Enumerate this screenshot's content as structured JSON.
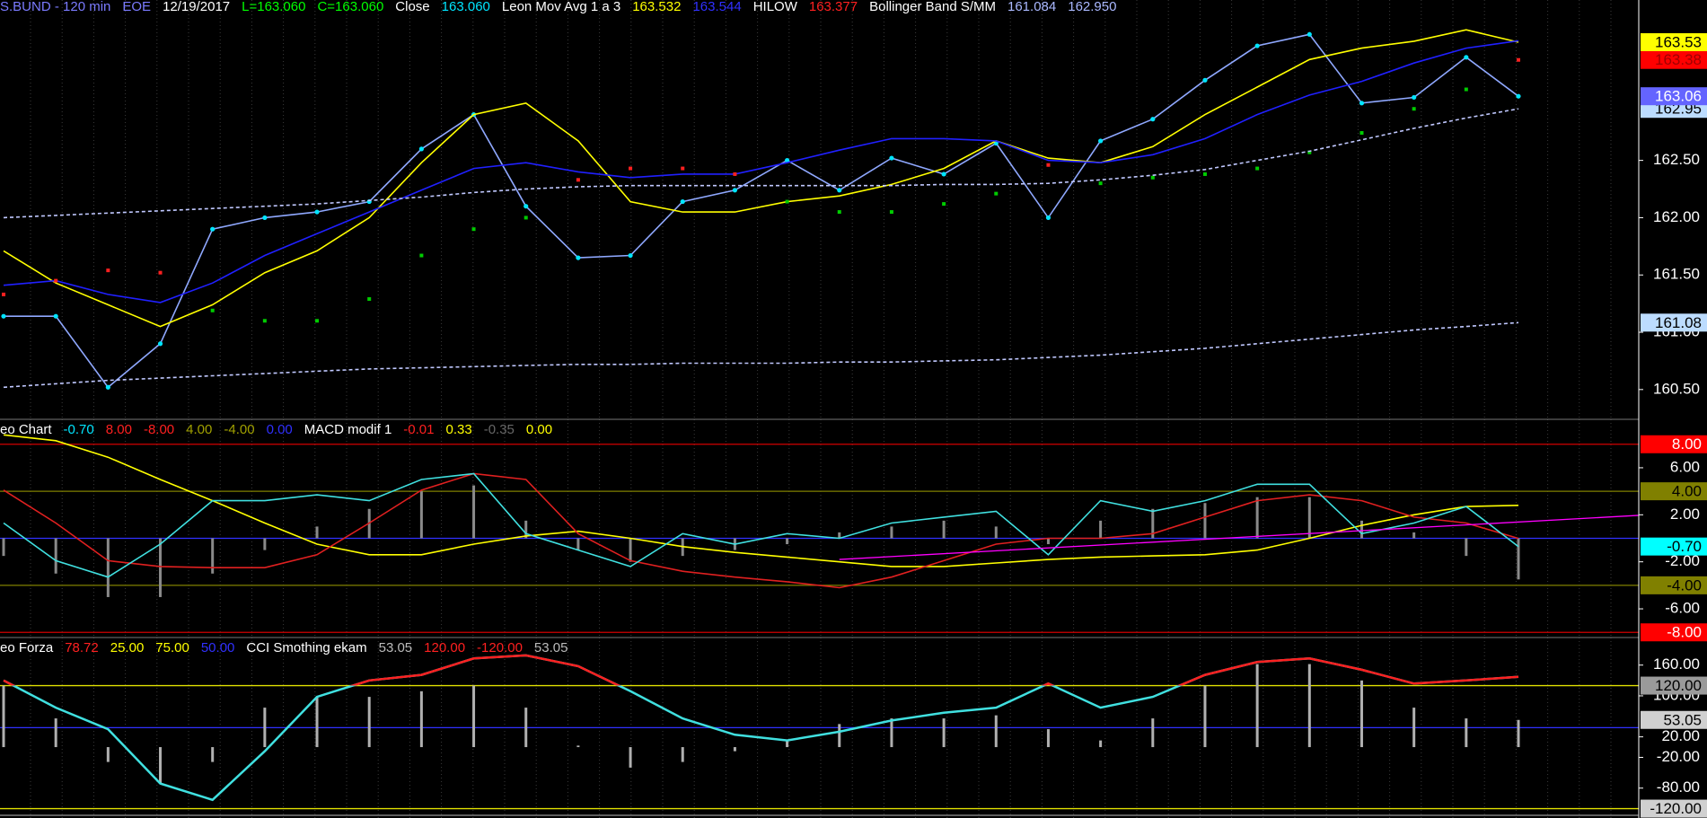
{
  "chart_data": [
    {
      "type": "line",
      "header": [
        {
          "text": "S.BUND - 120 min",
          "color": "#7b7bff"
        },
        {
          "text": "EOE",
          "color": "#7b7bff"
        },
        {
          "text": "12/19/2017",
          "color": "#ffffff"
        },
        {
          "text": "L=163.060",
          "color": "#00ff00"
        },
        {
          "text": "C=163.060",
          "color": "#00ff00"
        },
        {
          "text": "Close",
          "color": "#ffffff"
        },
        {
          "text": "163.060",
          "color": "#00e5ff"
        },
        {
          "text": "Leon Mov Avg 1 a 3",
          "color": "#ffffff"
        },
        {
          "text": "163.532",
          "color": "#ffff00"
        },
        {
          "text": "163.544",
          "color": "#3030ff"
        },
        {
          "text": "HILOW",
          "color": "#ffffff"
        },
        {
          "text": "163.377",
          "color": "#ff2020"
        },
        {
          "text": "Bollinger Band S/MM",
          "color": "#ffffff"
        },
        {
          "text": "161.084",
          "color": "#aab8ff"
        },
        {
          "text": "162.950",
          "color": "#aab8ff"
        }
      ],
      "ylim": [
        160.24,
        163.9
      ],
      "yticks": [
        {
          "value": 162.5,
          "label": "162.50"
        },
        {
          "value": 162,
          "label": "162.00"
        },
        {
          "value": 161.5,
          "label": "161.50"
        },
        {
          "value": 161,
          "label": "161.00"
        },
        {
          "value": 160.5,
          "label": "160.50"
        }
      ],
      "badges": [
        {
          "value": 162.95,
          "label": "162.95",
          "bg": "#bcdcff",
          "fg": "#000000"
        },
        {
          "value": 163.377,
          "label": "163.38",
          "bg": "#ff0000",
          "fg": "#a00000"
        },
        {
          "value": 163.532,
          "label": "163.53",
          "bg": "#ffff00",
          "fg": "#000000"
        },
        {
          "value": 163.06,
          "label": "163.06",
          "bg": "#6464ff",
          "fg": "#ffffff"
        },
        {
          "value": 161.084,
          "label": "161.08",
          "bg": "#bcdcff",
          "fg": "#000000"
        }
      ],
      "series": [
        {
          "style": "markers",
          "color": "#8fa8ff",
          "marker_color": "#00e5ff",
          "values": [
            161.14,
            161.14,
            160.52,
            160.9,
            161.9,
            162.0,
            162.05,
            162.14,
            162.6,
            162.9,
            162.1,
            161.65,
            161.67,
            162.14,
            162.24,
            162.5,
            162.24,
            162.52,
            162.38,
            162.65,
            162.0,
            162.67,
            162.86,
            163.2,
            163.5,
            163.6,
            163.0,
            163.05,
            163.4,
            163.06
          ]
        },
        {
          "style": "line",
          "color": "#ffff00",
          "values": [
            161.71,
            161.43,
            161.24,
            161.05,
            161.24,
            161.52,
            161.71,
            162.0,
            162.48,
            162.9,
            163.0,
            162.67,
            162.14,
            162.05,
            162.05,
            162.14,
            162.19,
            162.29,
            162.43,
            162.67,
            162.52,
            162.48,
            162.62,
            162.9,
            163.14,
            163.38,
            163.48,
            163.54,
            163.64,
            163.532
          ]
        },
        {
          "style": "line",
          "color": "#2020ff",
          "values": [
            161.41,
            161.45,
            161.33,
            161.26,
            161.43,
            161.67,
            161.86,
            162.05,
            162.24,
            162.43,
            162.48,
            162.4,
            162.35,
            162.38,
            162.38,
            162.48,
            162.59,
            162.69,
            162.69,
            162.67,
            162.5,
            162.48,
            162.55,
            162.69,
            162.9,
            163.07,
            163.19,
            163.35,
            163.48,
            163.544
          ]
        },
        {
          "style": "dots",
          "color": "#00cc00",
          "color_above": "#ff2020",
          "values": [
            161.33,
            161.45,
            161.54,
            161.52,
            161.19,
            161.1,
            161.1,
            161.29,
            161.67,
            161.9,
            162.0,
            162.33,
            162.43,
            162.43,
            162.38,
            162.14,
            162.05,
            162.05,
            162.12,
            162.21,
            162.46,
            162.3,
            162.35,
            162.38,
            162.43,
            162.57,
            162.74,
            162.95,
            163.12,
            163.377
          ]
        },
        {
          "style": "dashed",
          "color": "#c0c8ff",
          "values": [
            162.0,
            162.02,
            162.04,
            162.06,
            162.08,
            162.1,
            162.12,
            162.15,
            162.18,
            162.22,
            162.25,
            162.27,
            162.28,
            162.28,
            162.28,
            162.28,
            162.28,
            162.28,
            162.29,
            162.29,
            162.3,
            162.33,
            162.37,
            162.42,
            162.5,
            162.58,
            162.68,
            162.78,
            162.87,
            162.95
          ]
        },
        {
          "style": "dashed",
          "color": "#c0c8ff",
          "values": [
            160.52,
            160.55,
            160.58,
            160.6,
            160.62,
            160.64,
            160.66,
            160.68,
            160.69,
            160.7,
            160.71,
            160.72,
            160.72,
            160.73,
            160.73,
            160.73,
            160.74,
            160.74,
            160.75,
            160.76,
            160.78,
            160.8,
            160.83,
            160.86,
            160.9,
            160.94,
            160.98,
            161.02,
            161.05,
            161.084
          ]
        }
      ]
    },
    {
      "type": "line",
      "header": [
        {
          "text": "eo Chart",
          "color": "#ffffff"
        },
        {
          "text": "-0.70",
          "color": "#00e5ff"
        },
        {
          "text": "8.00",
          "color": "#ff2020"
        },
        {
          "text": "-8.00",
          "color": "#ff2020"
        },
        {
          "text": "4.00",
          "color": "#a0a000"
        },
        {
          "text": "-4.00",
          "color": "#a0a000"
        },
        {
          "text": "0.00",
          "color": "#3030ff"
        },
        {
          "text": "MACD modif 1",
          "color": "#ffffff"
        },
        {
          "text": "-0.01",
          "color": "#ff2020"
        },
        {
          "text": "0.33",
          "color": "#ffff00"
        },
        {
          "text": "-0.35",
          "color": "#666666"
        },
        {
          "text": "0.00",
          "color": "#ffff00"
        }
      ],
      "ylim": [
        -8.44,
        10.12
      ],
      "yticks": [
        {
          "value": 6,
          "label": "6.00"
        },
        {
          "value": 2,
          "label": "2.00"
        },
        {
          "value": -2,
          "label": "-2.00"
        },
        {
          "value": -6,
          "label": "-6.00"
        }
      ],
      "levels": [
        {
          "value": 8,
          "color": "#d00000"
        },
        {
          "value": 4,
          "color": "#808000"
        },
        {
          "value": 0,
          "color": "#3030ff"
        },
        {
          "value": -4,
          "color": "#808000"
        },
        {
          "value": -8,
          "color": "#d00000"
        }
      ],
      "badges": [
        {
          "value": 8,
          "label": "8.00",
          "bg": "#ff0000",
          "fg": "#ffffff"
        },
        {
          "value": 4,
          "label": "4.00",
          "bg": "#808000",
          "fg": "#000000"
        },
        {
          "value": -0.7,
          "label": "-0.70",
          "bg": "#00ffff",
          "fg": "#000000"
        },
        {
          "value": -4,
          "label": "-4.00",
          "bg": "#808000",
          "fg": "#000000"
        },
        {
          "value": -8,
          "label": "-8.00",
          "bg": "#ff0000",
          "fg": "#ffffff"
        }
      ],
      "trendline": {
        "color": "#ff00ff",
        "from": [
          16,
          -1.8
        ],
        "to": [
          31.5,
          2.0
        ]
      },
      "series": [
        {
          "style": "bars",
          "color": "#8a8a8a",
          "values": [
            -1.5,
            -3,
            -5,
            -5,
            -3,
            -1,
            1,
            2.5,
            4,
            4.5,
            1.5,
            -1,
            -2,
            -1.5,
            -1,
            -0.5,
            0.5,
            1,
            1.5,
            1,
            -0.5,
            1.5,
            2.5,
            3,
            3.5,
            3.5,
            1.5,
            0.5,
            -1.5,
            -3.5
          ]
        },
        {
          "style": "line",
          "color": "#ffff00",
          "values": [
            8.8,
            8.3,
            6.9,
            5.0,
            3.2,
            1.3,
            -0.5,
            -1.4,
            -1.4,
            -0.5,
            0.2,
            0.6,
            0,
            -0.7,
            -1.2,
            -1.6,
            -2.0,
            -2.4,
            -2.4,
            -2.1,
            -1.8,
            -1.6,
            -1.5,
            -1.4,
            -1.0,
            0,
            1.1,
            2.0,
            2.7,
            2.8
          ]
        },
        {
          "style": "line",
          "color": "#e02020",
          "values": [
            4.1,
            1.3,
            -1.9,
            -2.4,
            -2.5,
            -2.5,
            -1.4,
            1.3,
            4.1,
            5.5,
            5.0,
            0.4,
            -1.9,
            -2.8,
            -3.3,
            -3.7,
            -4.2,
            -3.3,
            -1.9,
            -0.5,
            0,
            0,
            0.4,
            1.8,
            3.2,
            3.7,
            3.2,
            1.8,
            1.3,
            -0.01
          ]
        },
        {
          "style": "line",
          "color": "#40e0e0",
          "values": [
            1.3,
            -1.9,
            -3.3,
            -0.5,
            3.2,
            3.2,
            3.7,
            3.2,
            5.0,
            5.5,
            0.4,
            -1.0,
            -2.4,
            0.4,
            -0.5,
            0.4,
            0,
            1.3,
            1.8,
            2.3,
            -1.4,
            3.2,
            2.3,
            3.2,
            4.6,
            4.6,
            0.4,
            1.3,
            2.7,
            -0.7
          ]
        }
      ]
    },
    {
      "type": "line",
      "header": [
        {
          "text": "eo Forza",
          "color": "#ffffff"
        },
        {
          "text": "78.72",
          "color": "#ff2020"
        },
        {
          "text": "25.00",
          "color": "#ffff00"
        },
        {
          "text": "75.00",
          "color": "#ffff00"
        },
        {
          "text": "50.00",
          "color": "#3030ff"
        },
        {
          "text": "CCI Smothing ekam",
          "color": "#ffffff"
        },
        {
          "text": "53.05",
          "color": "#bbbbbb"
        },
        {
          "text": "120.00",
          "color": "#ff2020"
        },
        {
          "text": "-120.00",
          "color": "#ff2020"
        },
        {
          "text": "53.05",
          "color": "#bbbbbb"
        }
      ],
      "ylim": [
        -138.3,
        213.8
      ],
      "yticks": [
        {
          "value": 160,
          "label": "160.00"
        },
        {
          "value": 100,
          "label": "100.00"
        },
        {
          "value": 20,
          "label": "20.00"
        },
        {
          "value": -20,
          "label": "-20.00"
        },
        {
          "value": -80,
          "label": "-80.00"
        }
      ],
      "levels": [
        {
          "value": 120,
          "color": "#e0e000"
        },
        {
          "value": 38,
          "color": "#3030ff"
        },
        {
          "value": -120,
          "color": "#e0e000"
        }
      ],
      "badges": [
        {
          "value": 120,
          "label": "120.00",
          "bg": "#9a9a9a",
          "fg": "#000000"
        },
        {
          "value": 53.05,
          "label": "53.05",
          "bg": "#d0d0d0",
          "fg": "#000000"
        },
        {
          "value": -120,
          "label": "-120.00",
          "bg": "#d0d0d0",
          "fg": "#000000"
        }
      ],
      "series": [
        {
          "style": "bars",
          "color": "#b0b0b0",
          "values": [
            120,
            56,
            -29,
            -71,
            -29,
            77,
            98,
            98,
            109,
            120,
            77,
            3,
            -40,
            -29,
            -8,
            13,
            45,
            56,
            56,
            62,
            35,
            13,
            56,
            120,
            162,
            162,
            130,
            77,
            56,
            53.05
          ]
        },
        {
          "style": "threshold",
          "color": "#40e0e0",
          "threshold": {
            "value": 120,
            "color": "#ff2020"
          },
          "values": [
            130,
            77,
            35,
            -71,
            -103,
            -8,
            98,
            130,
            141,
            173,
            179,
            158,
            109,
            56,
            24,
            13,
            30,
            52,
            67,
            77,
            124,
            77,
            98,
            141,
            166,
            173,
            151,
            124,
            130,
            137
          ]
        }
      ]
    }
  ]
}
